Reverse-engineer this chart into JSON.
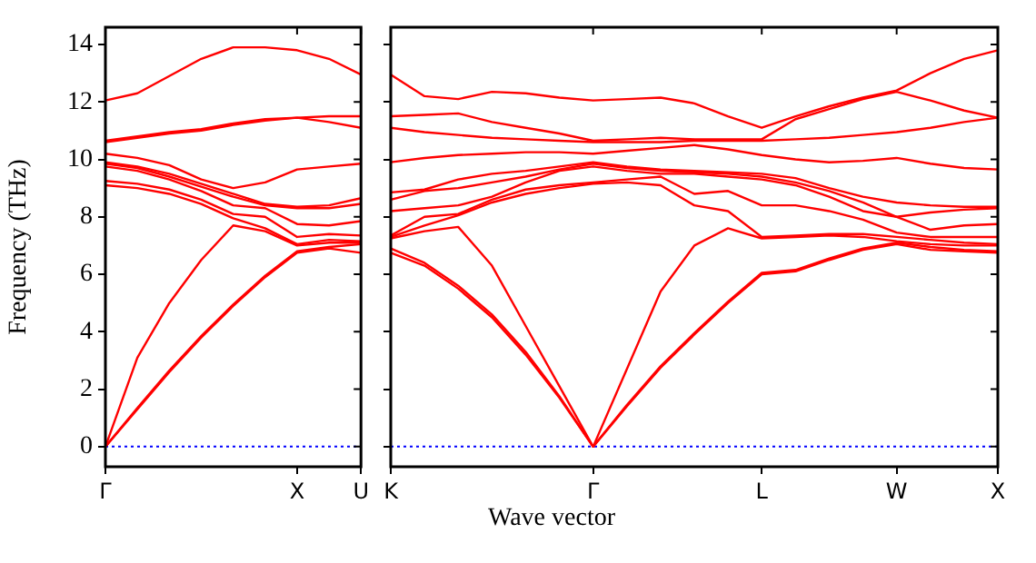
{
  "chart_data": [
    {
      "type": "line",
      "ylabel": "Frequency (THz)",
      "categories": [
        "Γ",
        null,
        null,
        null,
        null,
        null,
        "X",
        null,
        "U"
      ],
      "ylim": [
        -0.7,
        14.6
      ],
      "yticks": [
        0,
        2,
        4,
        6,
        8,
        10,
        12,
        14
      ],
      "grid": false,
      "legend": false,
      "marker": "none",
      "line_style": "solid",
      "ref_lines": [
        {
          "axis": "y",
          "value": 0,
          "color": "#0000ff",
          "line_style": "dotted"
        }
      ],
      "series": [
        {
          "color": "#ff0000",
          "values": [
            0,
            1.3,
            2.6,
            3.8,
            4.9,
            5.9,
            6.75,
            6.9,
            6.75
          ]
        },
        {
          "color": "#ff0000",
          "values": [
            0,
            1.35,
            2.65,
            3.85,
            4.95,
            5.95,
            6.8,
            6.95,
            7.05
          ]
        },
        {
          "color": "#ff0000",
          "values": [
            0,
            3.1,
            5.0,
            6.5,
            7.7,
            7.5,
            7.0,
            7.1,
            7.1
          ]
        },
        {
          "color": "#ff0000",
          "values": [
            9.1,
            9.0,
            8.8,
            8.45,
            7.95,
            7.6,
            7.05,
            7.2,
            7.15
          ]
        },
        {
          "color": "#ff0000",
          "values": [
            9.25,
            9.15,
            8.95,
            8.6,
            8.1,
            8.0,
            7.3,
            7.4,
            7.35
          ]
        },
        {
          "color": "#ff0000",
          "values": [
            9.75,
            9.6,
            9.3,
            8.9,
            8.4,
            8.3,
            7.75,
            7.7,
            7.85
          ]
        },
        {
          "color": "#ff0000",
          "values": [
            9.85,
            9.7,
            9.4,
            9.05,
            8.7,
            8.4,
            8.3,
            8.3,
            8.45
          ]
        },
        {
          "color": "#ff0000",
          "values": [
            9.9,
            9.75,
            9.5,
            9.15,
            8.8,
            8.45,
            8.35,
            8.4,
            8.65
          ]
        },
        {
          "color": "#ff0000",
          "values": [
            10.2,
            10.05,
            9.8,
            9.3,
            9.0,
            9.2,
            9.65,
            9.75,
            9.85
          ]
        },
        {
          "color": "#ff0000",
          "values": [
            10.6,
            10.75,
            10.9,
            11.0,
            11.2,
            11.35,
            11.45,
            11.3,
            11.1
          ]
        },
        {
          "color": "#ff0000",
          "values": [
            10.65,
            10.8,
            10.95,
            11.05,
            11.25,
            11.4,
            11.45,
            11.5,
            11.5
          ]
        },
        {
          "color": "#ff0000",
          "values": [
            12.05,
            12.3,
            12.9,
            13.5,
            13.9,
            13.9,
            13.8,
            13.5,
            12.95
          ]
        }
      ]
    },
    {
      "type": "line",
      "xlabel": "Wave vector",
      "categories": [
        "K",
        null,
        null,
        null,
        null,
        null,
        "Γ",
        null,
        null,
        null,
        null,
        "L",
        null,
        null,
        null,
        "W",
        null,
        null,
        "X"
      ],
      "ylim": [
        -0.7,
        14.6
      ],
      "yticks": [
        0,
        2,
        4,
        6,
        8,
        10,
        12,
        14
      ],
      "tick_labels": "x",
      "grid": false,
      "legend": false,
      "marker": "none",
      "line_style": "solid",
      "ref_lines": [
        {
          "axis": "y",
          "value": 0,
          "color": "#0000ff",
          "line_style": "dotted"
        }
      ],
      "series": [
        {
          "color": "#ff0000",
          "values": [
            6.75,
            6.3,
            5.5,
            4.5,
            3.2,
            1.7,
            0,
            1.4,
            2.75,
            3.9,
            5.0,
            6.0,
            6.1,
            6.5,
            6.85,
            7.05,
            6.85,
            6.8,
            6.75
          ]
        },
        {
          "color": "#ff0000",
          "values": [
            6.9,
            6.4,
            5.6,
            4.6,
            3.3,
            1.75,
            0,
            1.45,
            2.8,
            3.95,
            5.05,
            6.05,
            6.15,
            6.55,
            6.9,
            7.1,
            6.95,
            6.85,
            6.8
          ]
        },
        {
          "color": "#ff0000",
          "values": [
            7.25,
            7.5,
            7.65,
            6.3,
            4.2,
            2.1,
            0,
            2.7,
            5.4,
            7.0,
            7.6,
            7.25,
            7.3,
            7.35,
            7.3,
            7.15,
            7.05,
            7.0,
            7.0
          ]
        },
        {
          "color": "#ff0000",
          "values": [
            7.3,
            7.7,
            8.05,
            8.5,
            8.8,
            9.0,
            9.15,
            9.2,
            9.1,
            8.4,
            8.2,
            7.3,
            7.35,
            7.4,
            7.4,
            7.3,
            7.2,
            7.1,
            7.05
          ]
        },
        {
          "color": "#ff0000",
          "values": [
            7.35,
            8.0,
            8.1,
            8.6,
            8.95,
            9.1,
            9.2,
            9.3,
            9.4,
            8.8,
            8.9,
            8.4,
            8.4,
            8.2,
            7.9,
            7.45,
            7.3,
            7.3,
            7.3
          ]
        },
        {
          "color": "#ff0000",
          "values": [
            8.2,
            8.3,
            8.4,
            8.7,
            9.2,
            9.6,
            9.75,
            9.6,
            9.5,
            9.5,
            9.4,
            9.3,
            9.1,
            8.7,
            8.2,
            8.0,
            7.55,
            7.7,
            7.75
          ]
        },
        {
          "color": "#ff0000",
          "values": [
            8.6,
            8.9,
            9.0,
            9.2,
            9.4,
            9.65,
            9.85,
            9.7,
            9.6,
            9.55,
            9.5,
            9.4,
            9.2,
            8.9,
            8.5,
            8.0,
            8.15,
            8.25,
            8.3
          ]
        },
        {
          "color": "#ff0000",
          "values": [
            8.85,
            8.95,
            9.3,
            9.5,
            9.6,
            9.75,
            9.9,
            9.75,
            9.65,
            9.6,
            9.55,
            9.5,
            9.35,
            9.0,
            8.7,
            8.5,
            8.4,
            8.35,
            8.35
          ]
        },
        {
          "color": "#ff0000",
          "values": [
            9.9,
            10.05,
            10.15,
            10.2,
            10.25,
            10.25,
            10.2,
            10.3,
            10.4,
            10.5,
            10.35,
            10.15,
            10.0,
            9.9,
            9.95,
            10.05,
            9.85,
            9.7,
            9.65
          ]
        },
        {
          "color": "#ff0000",
          "values": [
            11.1,
            10.95,
            10.85,
            10.75,
            10.7,
            10.65,
            10.6,
            10.6,
            10.6,
            10.65,
            10.65,
            10.65,
            10.7,
            10.75,
            10.85,
            10.95,
            11.1,
            11.3,
            11.45
          ]
        },
        {
          "color": "#ff0000",
          "values": [
            11.5,
            11.55,
            11.6,
            11.3,
            11.1,
            10.9,
            10.65,
            10.7,
            10.75,
            10.7,
            10.7,
            10.7,
            11.4,
            11.75,
            12.1,
            12.35,
            12.05,
            11.7,
            11.45
          ]
        },
        {
          "color": "#ff0000",
          "values": [
            12.95,
            12.2,
            12.1,
            12.35,
            12.3,
            12.15,
            12.05,
            12.1,
            12.15,
            11.95,
            11.5,
            11.1,
            11.5,
            11.85,
            12.15,
            12.4,
            13.0,
            13.5,
            13.8
          ]
        }
      ]
    }
  ]
}
